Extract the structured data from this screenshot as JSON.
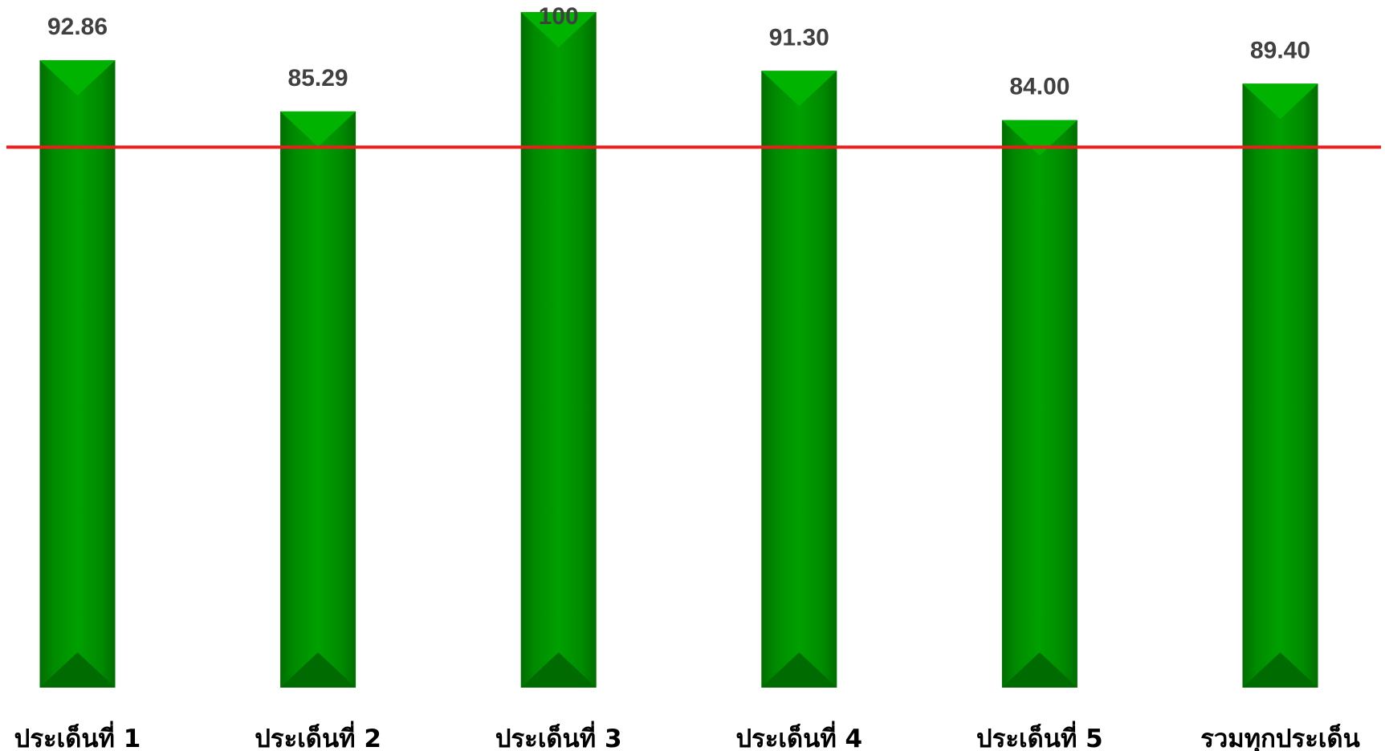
{
  "chart_data": {
    "type": "bar",
    "categories": [
      "ประเด็นที่ 1",
      "ประเด็นที่ 2",
      "ประเด็นที่ 3",
      "ประเด็นที่ 4",
      "ประเด็นที่ 5",
      "รวมทุกประเด็น"
    ],
    "values": [
      92.86,
      85.29,
      100,
      91.3,
      84.0,
      89.4
    ],
    "data_labels": [
      "92.86",
      "85.29",
      "100",
      "91.30",
      "84.00",
      "89.40"
    ],
    "reference_line": {
      "value": 80,
      "color": "#ee1c1c"
    },
    "ylim": [
      0,
      100
    ],
    "grid": false,
    "legend": "none",
    "title": "",
    "xlabel": "",
    "ylabel": ""
  },
  "colors": {
    "bar_main": "#009900",
    "bar_dark": "#006b00",
    "bar_light": "#00b300",
    "reference_line": "#ee1c1c",
    "value_label": "#404040",
    "category_label": "#000000"
  }
}
